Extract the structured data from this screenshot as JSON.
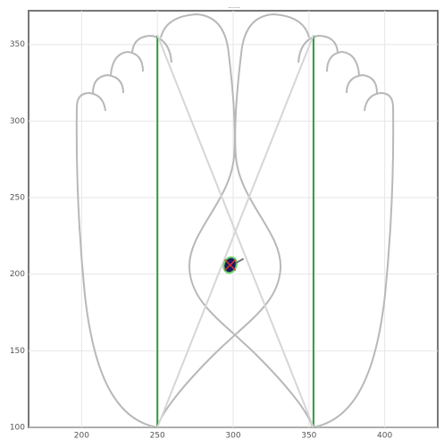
{
  "chart_data": {
    "type": "line",
    "title": "......",
    "xlim": [
      165,
      435
    ],
    "ylim": [
      100,
      372
    ],
    "xticks": [
      200,
      250,
      300,
      350,
      400
    ],
    "yticks": [
      100,
      150,
      200,
      250,
      300,
      350
    ],
    "grid": true,
    "lines": [
      {
        "color": "#2e9a3a",
        "x": [
          250,
          250
        ],
        "y": [
          100,
          356
        ]
      },
      {
        "color": "#2e9a3a",
        "x": [
          353,
          353
        ],
        "y": [
          100,
          356
        ]
      },
      {
        "color": "#d6d6d6",
        "x": [
          250,
          353
        ],
        "y": [
          100,
          356
        ]
      },
      {
        "color": "#d6d6d6",
        "x": [
          353,
          250
        ],
        "y": [
          100,
          356
        ]
      }
    ],
    "points": {
      "color": "#1a1a5e",
      "x": [
        298
      ],
      "y": [
        206
      ]
    }
  }
}
